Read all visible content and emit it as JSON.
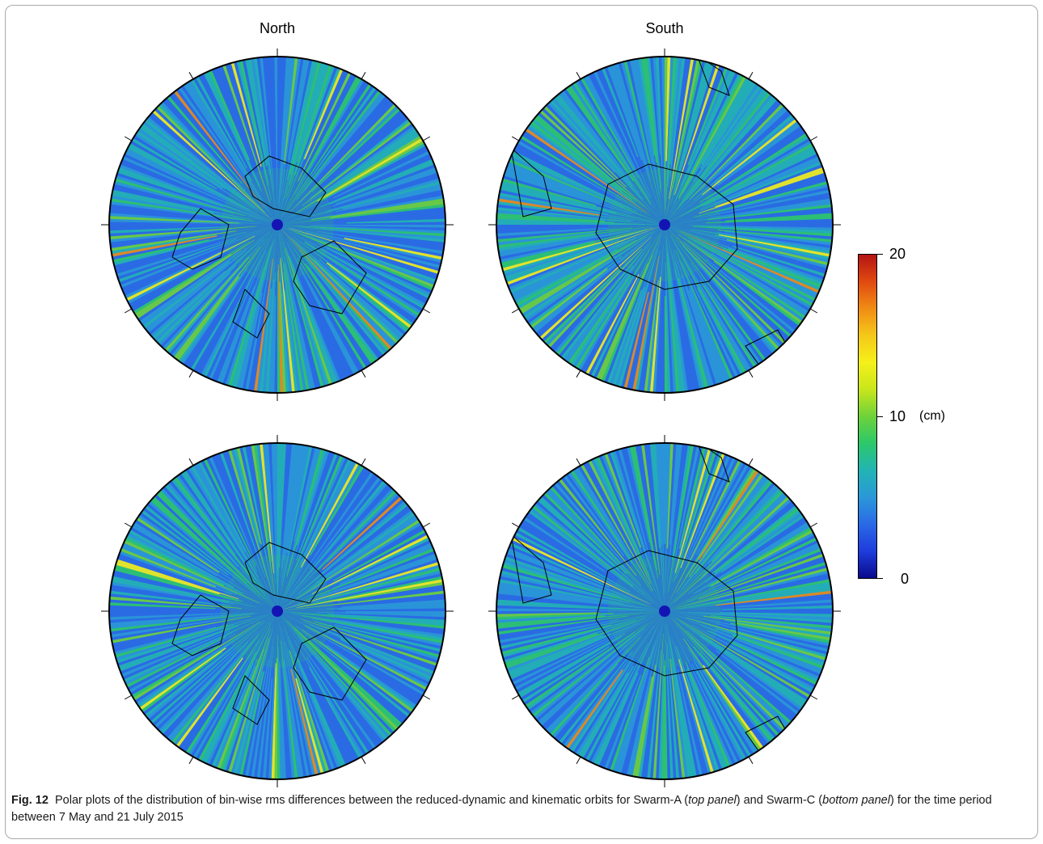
{
  "figure": {
    "column_titles": [
      "North",
      "South"
    ],
    "colorbar": {
      "min_label": "0",
      "mid_label": "10",
      "max_label": "20",
      "unit_label": "(cm)",
      "min": 0,
      "max": 20,
      "colors": [
        "#0a0a8c",
        "#1e3cdc",
        "#2a6ae6",
        "#2a98d8",
        "#22b4b4",
        "#2cc86a",
        "#6ed23a",
        "#c8e61c",
        "#f5f01a",
        "#f5c81a",
        "#f08c14",
        "#e04a10",
        "#b41414"
      ]
    },
    "panels": [
      {
        "name": "swarm-a-north",
        "hemisphere": "north",
        "row": "top"
      },
      {
        "name": "swarm-a-south",
        "hemisphere": "south",
        "row": "top"
      },
      {
        "name": "swarm-c-north",
        "hemisphere": "north",
        "row": "bottom"
      },
      {
        "name": "swarm-c-south",
        "hemisphere": "south",
        "row": "bottom"
      }
    ],
    "pole_marker_color": "#1414b4",
    "base_color": "#2a72d8"
  },
  "caption": {
    "label": "Fig. 12",
    "text_1": "Polar plots of the distribution of bin-wise rms differences between the reduced-dynamic and kinematic orbits for Swarm-A (",
    "italic_1": "top panel",
    "text_2": ") and Swarm-C (",
    "italic_2": "bottom panel",
    "text_3": ") for the time period between 7 May and 21 July 2015"
  }
}
